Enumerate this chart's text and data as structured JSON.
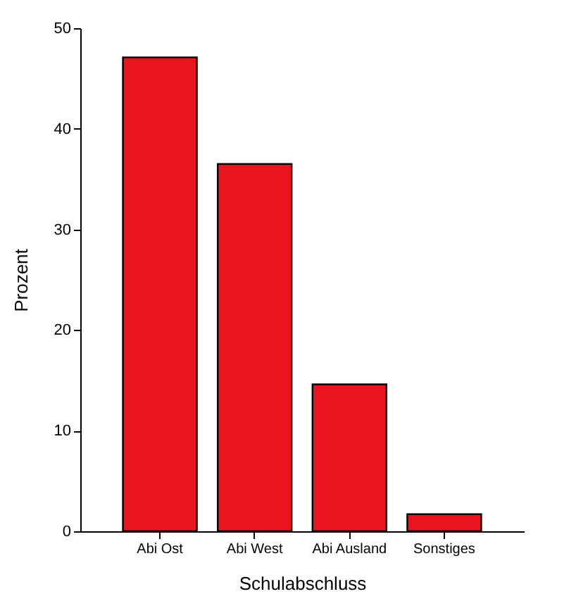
{
  "chart_data": {
    "type": "bar",
    "xlabel": "Schulabschluss",
    "ylabel": "Prozent",
    "categories": [
      "Abi Ost",
      "Abi West",
      "Abi Ausland",
      "Sonstiges"
    ],
    "values": [
      47.1,
      36.5,
      14.6,
      1.7
    ],
    "color": "#e8141e",
    "ylim": [
      0,
      50
    ],
    "yticks": [
      0,
      10,
      20,
      30,
      40,
      50
    ]
  }
}
